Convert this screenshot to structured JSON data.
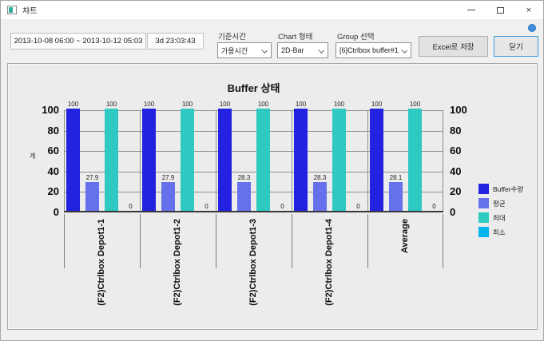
{
  "window": {
    "title": "챠트",
    "minimize": "—",
    "close": "×"
  },
  "toolbar": {
    "date_range": "2013-10-08 06:00 ~ 2013-10-12 05:03",
    "duration": "3d 23:03:43",
    "fields": [
      {
        "label": "기준시간",
        "value": "가용시간"
      },
      {
        "label": "Chart 형태",
        "value": "2D-Bar"
      },
      {
        "label": "Group 선택",
        "value": "[6]Ctrlbox buffer#1"
      }
    ],
    "excel_button": "Excel로 저장",
    "close_button": "닫기"
  },
  "chart_data": {
    "type": "bar",
    "title": "Buffer 상태",
    "ylabel": "개",
    "ylim": [
      0,
      100
    ],
    "yticks": [
      0,
      20,
      40,
      60,
      80,
      100
    ],
    "grid": true,
    "legend_position": "right",
    "categories": [
      "(F2)Ctrlbox Depot1-1",
      "(F2)Ctrlbox Depot1-2",
      "(F2)Ctrlbox Depot1-3",
      "(F2)Ctrlbox Depot1-4",
      "Average"
    ],
    "series": [
      {
        "name": "Buffer수량",
        "color": "#2222e0",
        "values": [
          100,
          100,
          100,
          100,
          100
        ]
      },
      {
        "name": "평균",
        "color": "#6670ea",
        "values": [
          27.9,
          27.9,
          28.3,
          28.3,
          28.1
        ]
      },
      {
        "name": "최대",
        "color": "#2ec9c0",
        "values": [
          100,
          100,
          100,
          100,
          100
        ]
      },
      {
        "name": "최소",
        "color": "#00b4f0",
        "values": [
          0,
          0,
          0,
          0,
          0
        ]
      }
    ]
  }
}
